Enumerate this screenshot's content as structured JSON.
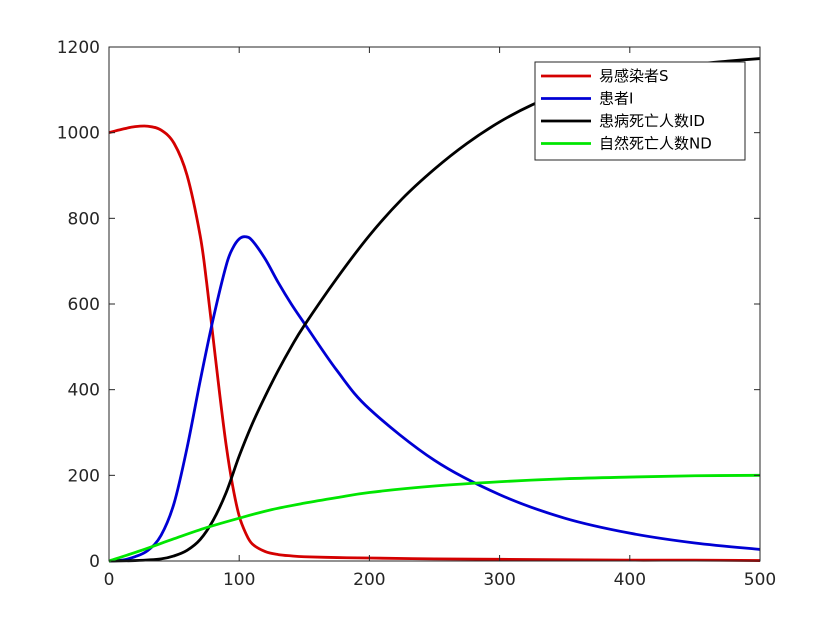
{
  "chart_data": {
    "type": "line",
    "title": "",
    "xlabel": "",
    "ylabel": "",
    "xlim": [
      0,
      500
    ],
    "ylim": [
      0,
      1200
    ],
    "xticks": [
      0,
      100,
      200,
      300,
      400,
      500
    ],
    "yticks": [
      0,
      200,
      400,
      600,
      800,
      1000,
      1200
    ],
    "grid": false,
    "legend_position": "top-right",
    "series": [
      {
        "name": "易感染者S",
        "color": "#d40000",
        "x": [
          0,
          10,
          20,
          30,
          40,
          50,
          60,
          70,
          75,
          80,
          85,
          90,
          95,
          100,
          105,
          110,
          120,
          130,
          140,
          150,
          175,
          200,
          250,
          300,
          350,
          400,
          450,
          500
        ],
        "y": [
          1000,
          1008,
          1014,
          1015,
          1006,
          975,
          900,
          760,
          650,
          520,
          390,
          270,
          175,
          105,
          65,
          40,
          22,
          15,
          12,
          10,
          8,
          7,
          5,
          4,
          3,
          2,
          2,
          1
        ]
      },
      {
        "name": "患者I",
        "color": "#0000d4",
        "x": [
          0,
          10,
          20,
          30,
          40,
          50,
          60,
          70,
          80,
          90,
          95,
          100,
          105,
          110,
          120,
          130,
          140,
          150,
          175,
          200,
          250,
          300,
          350,
          400,
          450,
          500
        ],
        "y": [
          0,
          2,
          10,
          25,
          60,
          135,
          265,
          420,
          565,
          690,
          730,
          752,
          757,
          748,
          705,
          650,
          600,
          555,
          445,
          355,
          235,
          155,
          100,
          65,
          42,
          27
        ]
      },
      {
        "name": "患病死亡人数ID",
        "color": "#000000",
        "x": [
          0,
          20,
          40,
          50,
          60,
          70,
          80,
          90,
          100,
          110,
          120,
          130,
          140,
          150,
          175,
          200,
          225,
          250,
          275,
          300,
          325,
          350,
          375,
          400,
          425,
          450,
          475,
          500
        ],
        "y": [
          0,
          1,
          5,
          12,
          25,
          50,
          95,
          160,
          245,
          320,
          385,
          445,
          500,
          550,
          660,
          760,
          845,
          915,
          975,
          1025,
          1065,
          1095,
          1120,
          1138,
          1150,
          1160,
          1167,
          1173
        ]
      },
      {
        "name": "自然死亡人数ND",
        "color": "#00e600",
        "x": [
          0,
          25,
          50,
          75,
          100,
          125,
          150,
          175,
          200,
          250,
          300,
          350,
          400,
          450,
          500
        ],
        "y": [
          0,
          25,
          52,
          78,
          100,
          120,
          135,
          148,
          160,
          175,
          185,
          192,
          196,
          199,
          200
        ]
      }
    ]
  }
}
